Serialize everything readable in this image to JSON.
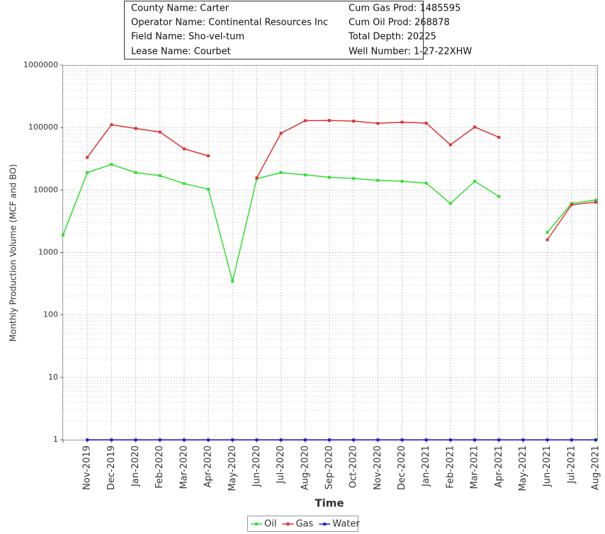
{
  "chart_data": {
    "type": "line",
    "info": [
      [
        "County Name:  Carter",
        "Cum Gas Prod:  1485595"
      ],
      [
        "Operator Name:  Continental Resources Inc",
        "Cum Oil Prod:  268878"
      ],
      [
        "Field Name:  Sho-vel-tum",
        "Total Depth:  20225"
      ],
      [
        "Lease Name:  Courbet",
        "Well Number:  1-27-22XHW"
      ]
    ],
    "x_label": "Time",
    "y_label": "Monthly Production Volume (MCF and BO)",
    "log_scale": true,
    "grid": true,
    "legend": "bottom",
    "ylim": [
      1,
      1000000
    ],
    "yticks": [
      1,
      10,
      100,
      1000,
      10000,
      100000,
      1000000
    ],
    "categories": [
      null,
      "Nov-2019",
      "Dec-2019",
      "Jan-2020",
      "Feb-2020",
      "Mar-2020",
      "Apr-2020",
      "May-2020",
      "Jun-2020",
      "Jul-2020",
      "Aug-2020",
      "Sep-2020",
      "Oct-2020",
      "Nov-2020",
      "Dec-2020",
      "Jan-2021",
      "Feb-2021",
      "Mar-2021",
      "Apr-2021",
      "May-2021",
      "Jun-2021",
      "Jul-2021",
      "Aug-2021"
    ],
    "series": [
      {
        "name": "Oil",
        "color": "#33dd33",
        "values": [
          1900,
          19000,
          25700,
          19000,
          17000,
          12700,
          10300,
          345,
          15200,
          19000,
          17500,
          16000,
          15300,
          14300,
          13800,
          12900,
          6100,
          13800,
          7900,
          null,
          2100,
          6100,
          6900
        ]
      },
      {
        "name": "Gas",
        "color": "#dd3333",
        "values": [
          null,
          33400,
          111000,
          97000,
          85000,
          45700,
          35200,
          null,
          15700,
          81000,
          129000,
          130000,
          127000,
          117000,
          122000,
          118000,
          53000,
          102000,
          70000,
          null,
          1600,
          5800,
          6400
        ]
      },
      {
        "name": "Water",
        "color": "#2222cc",
        "values": [
          null,
          1,
          1,
          1,
          1,
          1,
          1,
          1,
          1,
          1,
          1,
          1,
          1,
          1,
          1,
          1,
          1,
          1,
          1,
          1,
          1,
          1,
          1
        ]
      }
    ]
  }
}
